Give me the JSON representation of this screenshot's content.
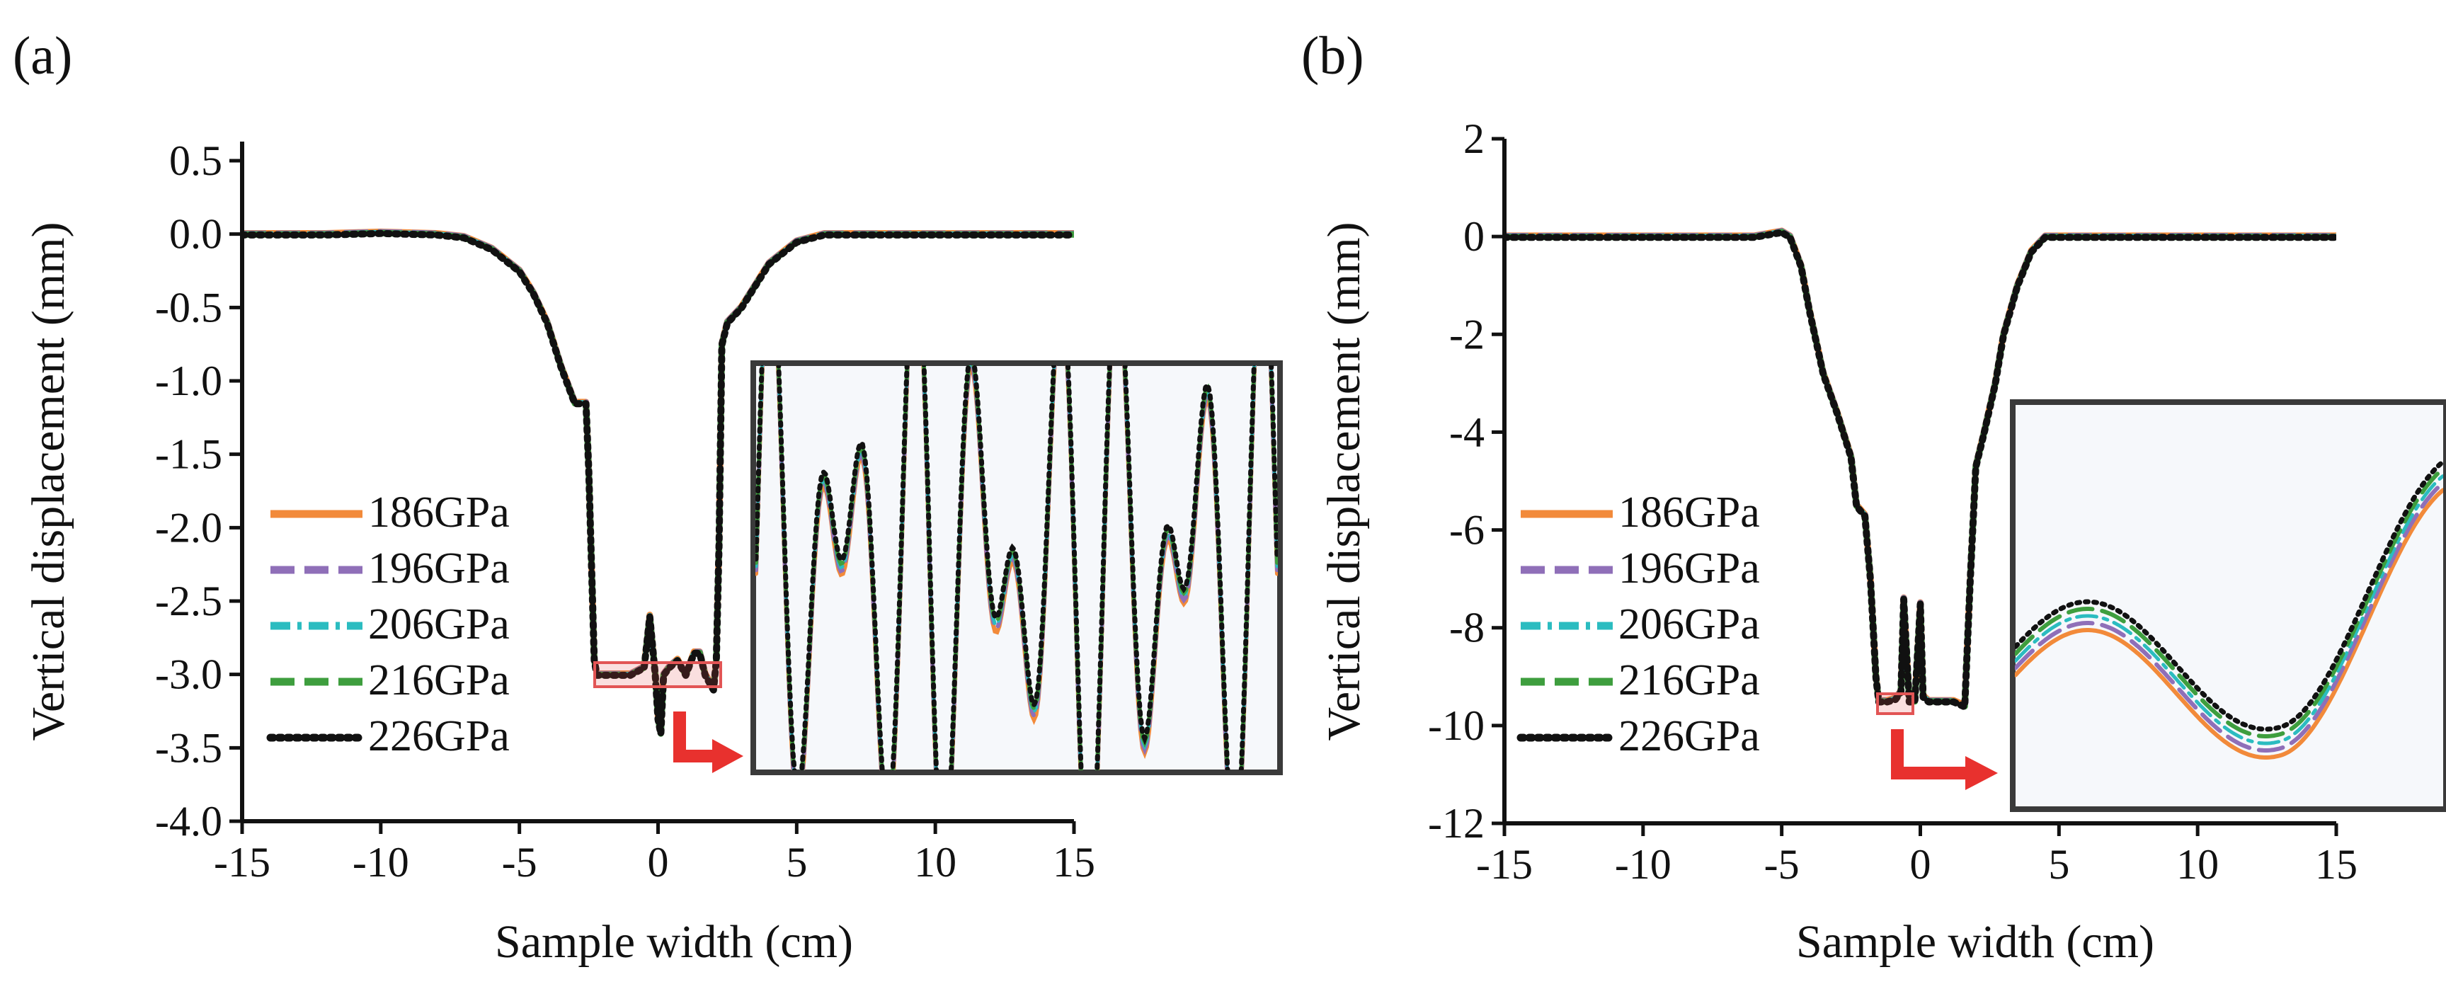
{
  "chart_data": [
    {
      "panel": "(a)",
      "type": "line",
      "xlabel": "Sample width (cm)",
      "ylabel": "Vertical displacement (mm)",
      "xlim": [
        -15,
        15
      ],
      "ylim": [
        -4.0,
        0.5
      ],
      "xticks": [
        "-15",
        "-10",
        "-5",
        "0",
        "5",
        "10",
        "15"
      ],
      "yticks": [
        "0.5",
        "0.0",
        "-0.5",
        "-1.0",
        "-1.5",
        "-2.0",
        "-2.5",
        "-3.0",
        "-3.5",
        "-4.0"
      ],
      "legend_position": "lower-left",
      "series": [
        {
          "name": "186GPa",
          "color": "#f28a3a",
          "style": "solid"
        },
        {
          "name": "196GPa",
          "color": "#8f6fb8",
          "style": "dashed"
        },
        {
          "name": "206GPa",
          "color": "#2bbcc0",
          "style": "dashdot"
        },
        {
          "name": "216GPa",
          "color": "#3e9e3e",
          "style": "dashed"
        },
        {
          "name": "226GPa",
          "color": "#111111",
          "style": "dotted"
        }
      ],
      "x": [
        -15,
        -12,
        -10,
        -8,
        -7,
        -6,
        -5,
        -4.5,
        -4,
        -3.5,
        -3,
        -2.6,
        -2.5,
        -2.3,
        -2.2,
        -2.0,
        -1.5,
        -1.0,
        -0.5,
        -0.3,
        -0.1,
        0.0,
        0.1,
        0.2,
        0.4,
        0.7,
        1.0,
        1.3,
        1.5,
        1.7,
        2.0,
        2.1,
        2.2,
        2.3,
        2.5,
        3.0,
        4.0,
        5.0,
        6.0,
        8.0,
        10.0,
        12.0,
        15.0
      ],
      "y": [
        0.0,
        0.0,
        0.01,
        0.0,
        -0.02,
        -0.1,
        -0.25,
        -0.4,
        -0.6,
        -0.9,
        -1.15,
        -1.15,
        -1.6,
        -2.9,
        -3.0,
        -3.0,
        -3.0,
        -3.0,
        -2.95,
        -2.6,
        -3.0,
        -3.3,
        -3.4,
        -3.0,
        -2.95,
        -2.9,
        -3.0,
        -2.85,
        -2.85,
        -3.0,
        -3.1,
        -2.9,
        -2.1,
        -0.75,
        -0.6,
        -0.5,
        -0.2,
        -0.05,
        0.0,
        0.0,
        0.0,
        0.0,
        0.0
      ],
      "inset": {
        "x_range": [
          -2.0,
          2.0
        ],
        "y_range": [
          -3.1,
          -2.9
        ]
      }
    },
    {
      "panel": "(b)",
      "type": "line",
      "xlabel": "Sample width (cm)",
      "ylabel": "Vertical displacement (mm)",
      "xlim": [
        -15,
        15
      ],
      "ylim": [
        -12,
        2
      ],
      "xticks": [
        "-15",
        "-10",
        "-5",
        "0",
        "5",
        "10",
        "15"
      ],
      "yticks": [
        "2",
        "0",
        "-2",
        "-4",
        "-6",
        "-8",
        "-10",
        "-12"
      ],
      "legend_position": "lower-left",
      "series": [
        {
          "name": "186GPa",
          "color": "#f28a3a",
          "style": "solid"
        },
        {
          "name": "196GPa",
          "color": "#8f6fb8",
          "style": "dashed"
        },
        {
          "name": "206GPa",
          "color": "#2bbcc0",
          "style": "dashdot"
        },
        {
          "name": "216GPa",
          "color": "#3e9e3e",
          "style": "dashed"
        },
        {
          "name": "226GPa",
          "color": "#111111",
          "style": "dotted"
        }
      ],
      "x": [
        -15,
        -12,
        -10,
        -8,
        -6,
        -5,
        -4.7,
        -4.3,
        -4.0,
        -3.5,
        -3.0,
        -2.5,
        -2.3,
        -2.0,
        -1.8,
        -1.6,
        -1.5,
        -1.2,
        -0.9,
        -0.7,
        -0.6,
        -0.4,
        -0.2,
        0.0,
        0.1,
        0.3,
        0.5,
        0.8,
        1.2,
        1.6,
        1.8,
        2.0,
        2.3,
        2.7,
        3.0,
        3.5,
        4.0,
        4.5,
        5.0,
        7.0,
        10.0,
        15.0
      ],
      "y": [
        0.0,
        0.0,
        0.0,
        0.0,
        0.0,
        0.1,
        0.0,
        -0.6,
        -1.5,
        -2.8,
        -3.6,
        -4.5,
        -5.5,
        -5.7,
        -7.0,
        -9.0,
        -9.5,
        -9.5,
        -9.45,
        -9.3,
        -7.4,
        -9.5,
        -9.5,
        -7.5,
        -9.4,
        -9.5,
        -9.5,
        -9.5,
        -9.5,
        -9.6,
        -7.0,
        -4.7,
        -4.0,
        -3.0,
        -2.0,
        -1.0,
        -0.3,
        0.0,
        0.0,
        0.0,
        0.0,
        0.0
      ],
      "inset": {
        "x_range": [
          -1.6,
          -0.6
        ],
        "y_range": [
          -9.55,
          -9.3
        ]
      }
    }
  ]
}
